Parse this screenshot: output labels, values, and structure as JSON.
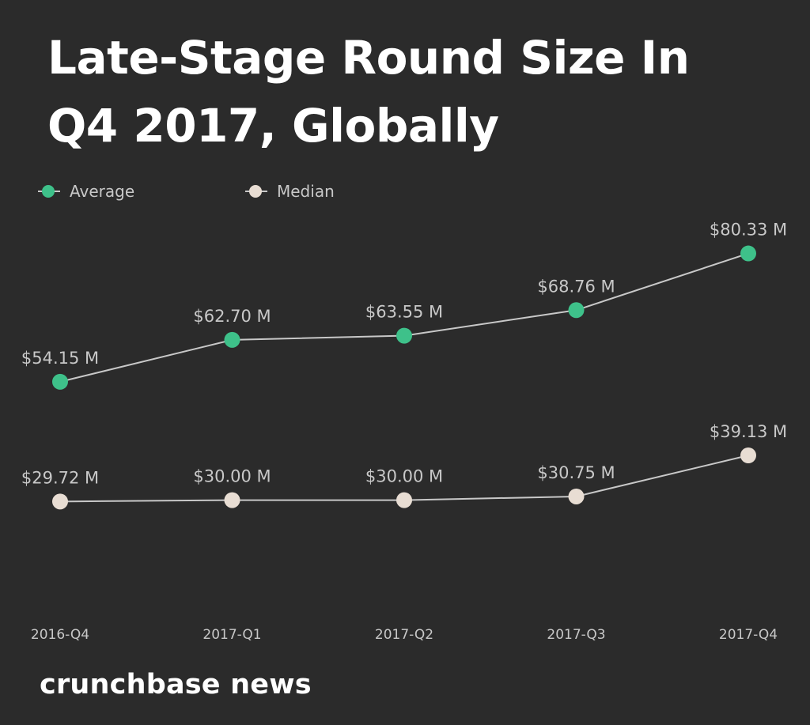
{
  "chart_data": {
    "type": "line",
    "title": "Late-Stage Round Size In Q4 2017, Globally",
    "categories": [
      "2016-Q4",
      "2017-Q1",
      "2017-Q2",
      "2017-Q3",
      "2017-Q4"
    ],
    "series": [
      {
        "name": "Average",
        "values": [
          54.15,
          62.7,
          63.55,
          68.76,
          80.33
        ],
        "labels": [
          "$54.15 M",
          "$62.70 M",
          "$63.55 M",
          "$68.76 M",
          "$80.33 M"
        ],
        "color": "#3ec18a"
      },
      {
        "name": "Median",
        "values": [
          29.72,
          30.0,
          30.0,
          30.75,
          39.13
        ],
        "labels": [
          "$29.72 M",
          "$30.00 M",
          "$30.00 M",
          "$30.75 M",
          "$39.13 M"
        ],
        "color": "#e8ddd3"
      }
    ],
    "xlabel": "",
    "ylabel": "",
    "ylim": [
      0,
      85
    ],
    "grid": false,
    "legend": "top-left"
  },
  "legend_items": [
    {
      "label": "Average"
    },
    {
      "label": "Median"
    }
  ],
  "brand": "crunchbase news",
  "colors": {
    "background": "#2b2b2b",
    "connector_line": "#c8c8c8",
    "label_text": "#c8c8c8"
  }
}
